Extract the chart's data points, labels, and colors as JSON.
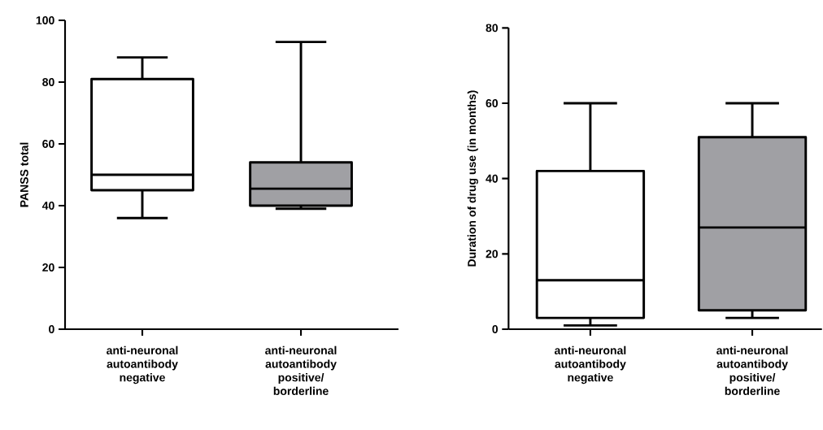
{
  "chart_data": [
    {
      "type": "box",
      "ylabel": "PANSS total",
      "categories": [
        "anti-neuronal autoantibody negative",
        "anti-neuronal autoantibody positive/ borderline"
      ],
      "colors": [
        "#ffffff",
        "#a0a0a4"
      ],
      "ylim": [
        0,
        100
      ],
      "yticks": [
        0,
        20,
        40,
        60,
        80,
        100
      ],
      "boxes": [
        {
          "low": 36,
          "q1": 45,
          "median": 50,
          "q3": 81,
          "high": 88
        },
        {
          "low": 39,
          "q1": 40,
          "median": 45.5,
          "q3": 54,
          "high": 93
        }
      ]
    },
    {
      "type": "box",
      "ylabel": "Duration of drug use (in months)",
      "categories": [
        "anti-neuronal autoantibody negative",
        "anti-neuronal autoantibody positive/ borderline"
      ],
      "colors": [
        "#ffffff",
        "#a0a0a4"
      ],
      "ylim": [
        0,
        80
      ],
      "yticks": [
        0,
        20,
        40,
        60,
        80
      ],
      "boxes": [
        {
          "low": 1,
          "q1": 3,
          "median": 13,
          "q3": 42,
          "high": 60
        },
        {
          "low": 3,
          "q1": 5,
          "median": 27,
          "q3": 51,
          "high": 60
        }
      ]
    }
  ]
}
